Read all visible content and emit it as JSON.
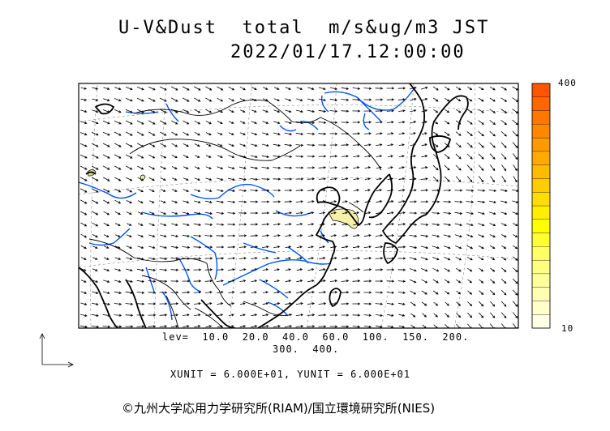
{
  "header": {
    "title": "U-V&Dust  total  m/s&ug/m3 JST",
    "datetime": "2022/01/17.12:00:00"
  },
  "colorbar": {
    "max_label": "400",
    "min_label": "10",
    "colors": [
      "#ffffe6",
      "#ffffcc",
      "#ffffb3",
      "#ffff99",
      "#ffff80",
      "#ffff66",
      "#ffff33",
      "#ffff00",
      "#ffee00",
      "#ffdd00",
      "#ffcc00",
      "#ffbb00",
      "#ffaa00",
      "#ff9900",
      "#ff8800",
      "#ff7700",
      "#ff6600",
      "#ff5500"
    ]
  },
  "legend": {
    "levels_line1": "lev=  10.0  20.0  40.0  60.0  100.  150.  200.",
    "levels_line2": "300.  400.",
    "units": "XUNIT = 6.000E+01, YUNIT = 6.000E+01"
  },
  "credit": "©九州大学応用力学研究所(RIAM)/国立環境研究所(NIES)",
  "style": {
    "coast_color": "#000000",
    "river_color": "#0055ff",
    "dust_fill": "#f5f0a8"
  }
}
